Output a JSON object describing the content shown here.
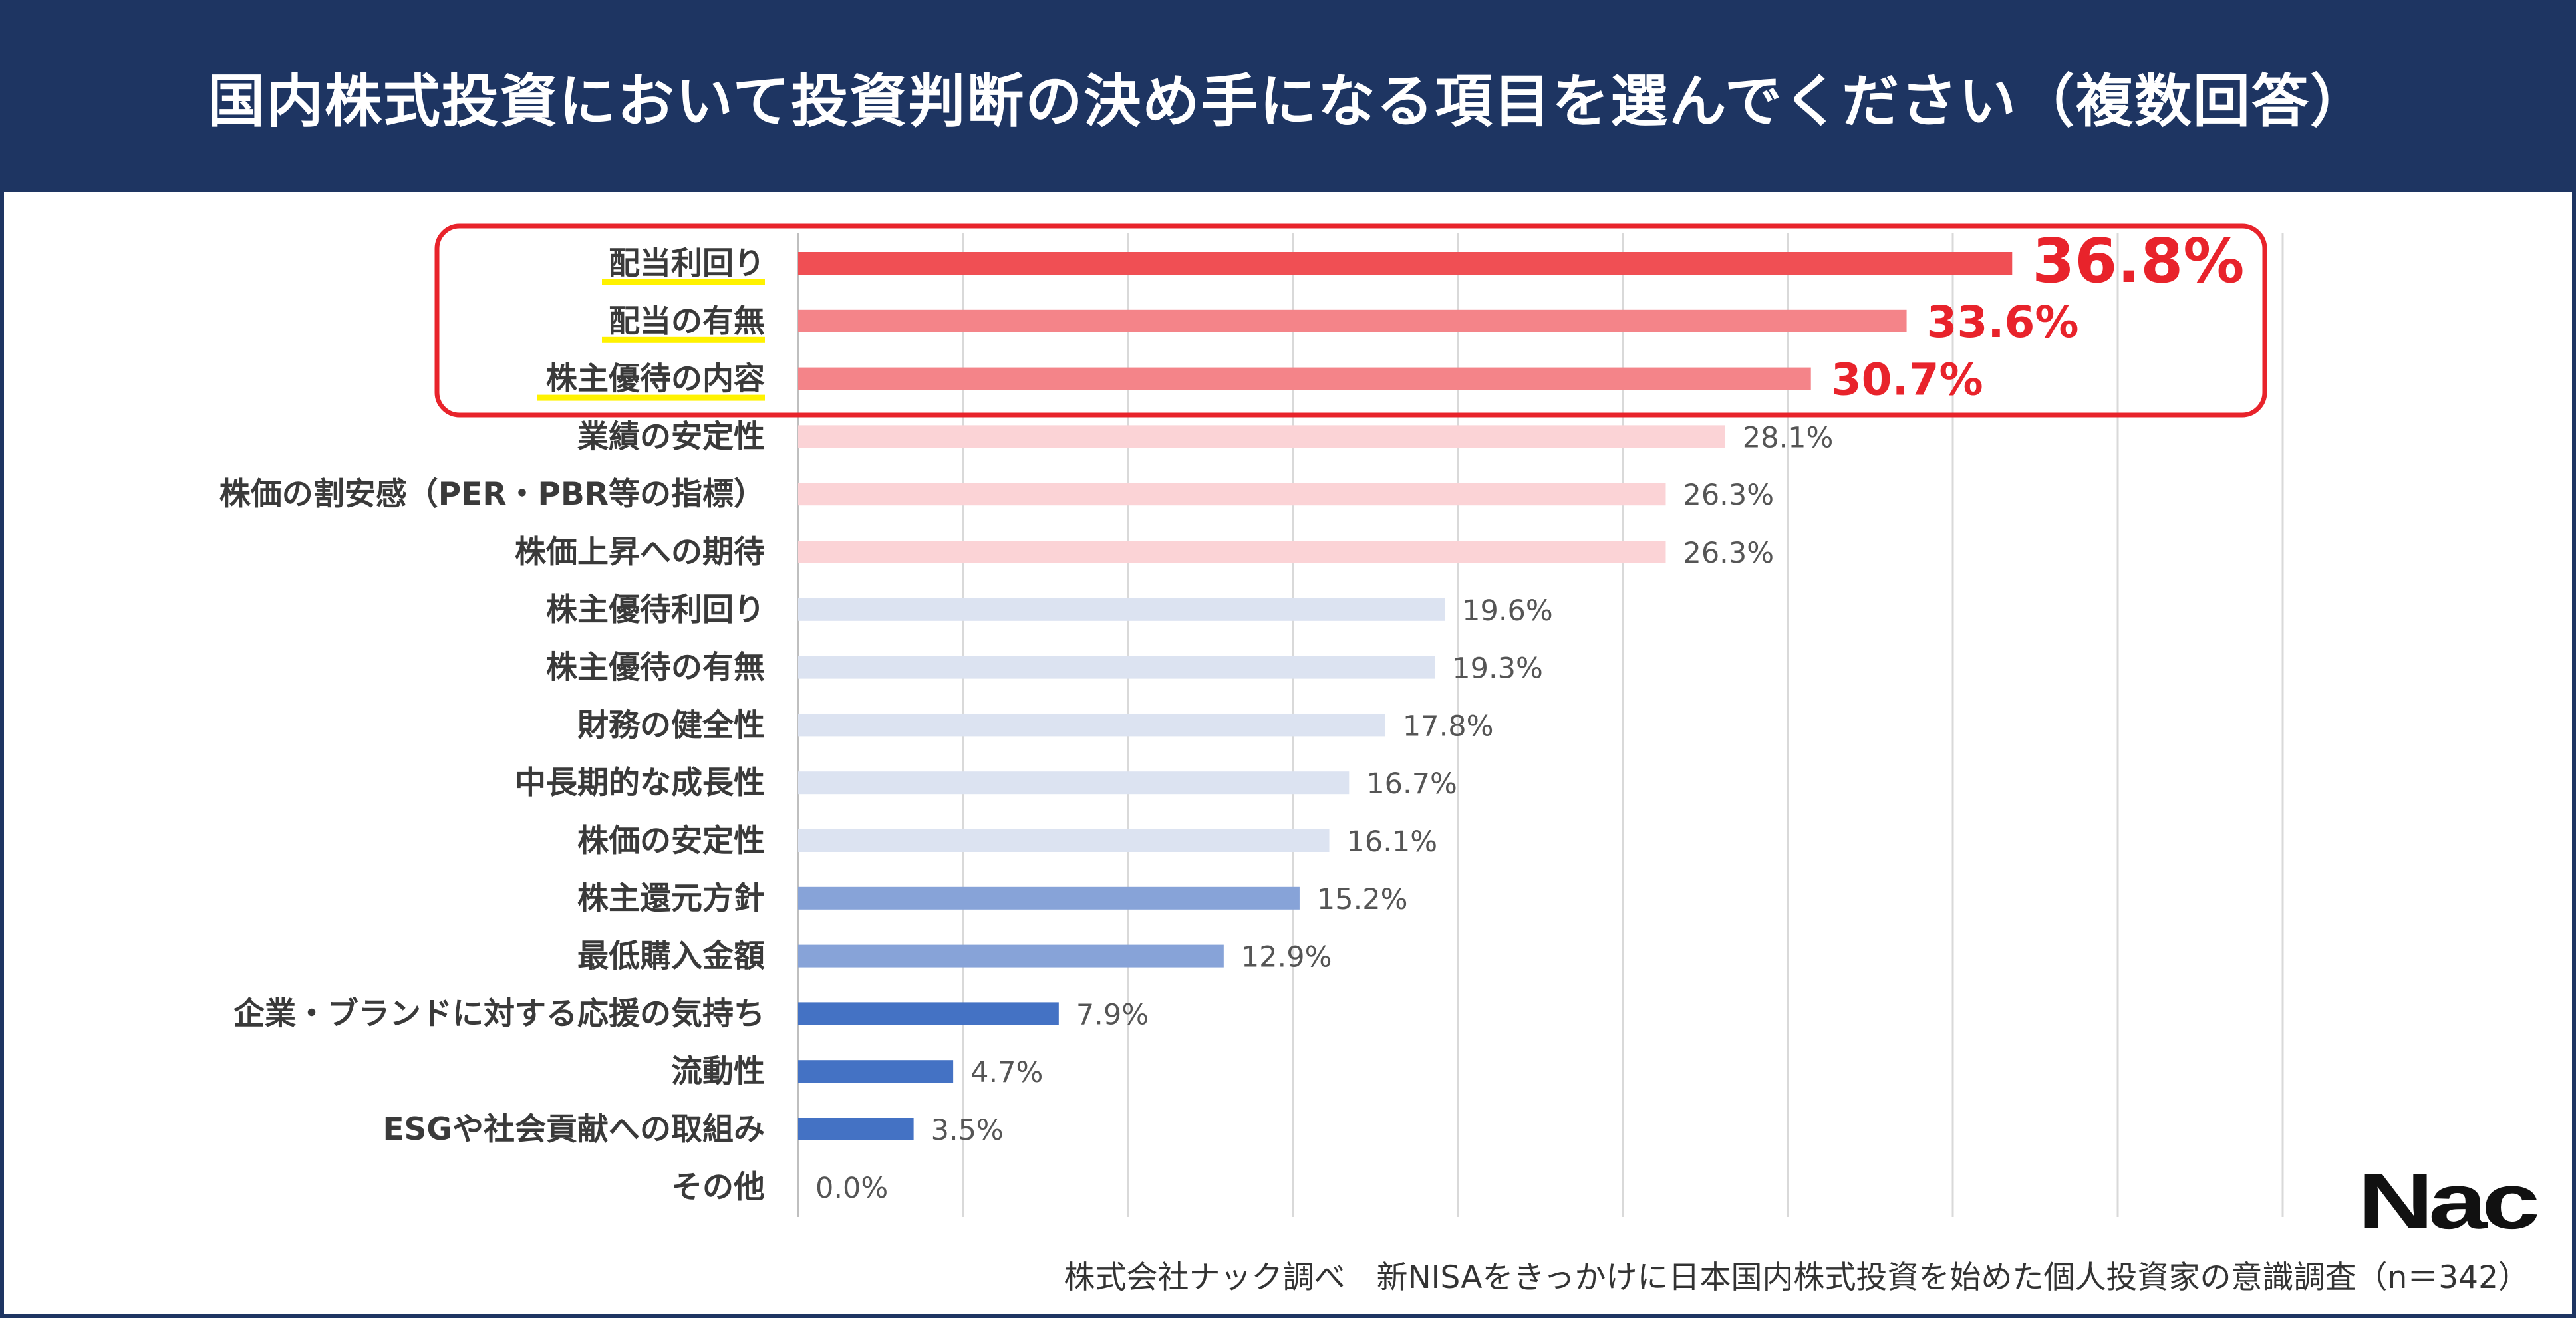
{
  "header": {
    "title": "国内株式投資において投資判断の決め手になる項目を選んでください（複数回答）"
  },
  "chart_data": {
    "type": "bar",
    "orientation": "horizontal",
    "title": "国内株式投資において投資判断の決め手になる項目を選んでください（複数回答）",
    "xlim": [
      0,
      45
    ],
    "x_tick_step": 5,
    "value_suffix": "%",
    "grid": true,
    "categories": [
      "配当利回り",
      "配当の有無",
      "株主優待の内容",
      "業績の安定性",
      "株価の割安感（PER・PBR等の指標）",
      "株価上昇への期待",
      "株主優待利回り",
      "株主優待の有無",
      "財務の健全性",
      "中長期的な成長性",
      "株価の安定性",
      "株主還元方針",
      "最低購入金額",
      "企業・ブランドに対する応援の気持ち",
      "流動性",
      "ESGや社会貢献への取組み",
      "その他"
    ],
    "values": [
      36.8,
      33.6,
      30.7,
      28.1,
      26.3,
      26.3,
      19.6,
      19.3,
      17.8,
      16.7,
      16.1,
      15.2,
      12.9,
      7.9,
      4.7,
      3.5,
      0.0
    ],
    "value_labels": [
      "36.8%",
      "33.6%",
      "30.7%",
      "28.1%",
      "26.3%",
      "26.3%",
      "19.6%",
      "19.3%",
      "17.8%",
      "16.7%",
      "16.1%",
      "15.2%",
      "12.9%",
      "7.9%",
      "4.7%",
      "3.5%",
      "0.0%"
    ],
    "bar_colors": [
      "#f04f54",
      "#f48489",
      "#f48489",
      "#fbd3d6",
      "#fbd3d6",
      "#fbd3d6",
      "#dce3f1",
      "#dce3f1",
      "#dce3f1",
      "#dce3f1",
      "#dce3f1",
      "#87a3d8",
      "#87a3d8",
      "#4472c4",
      "#4472c4",
      "#4472c4",
      "#4472c4"
    ],
    "highlight_count": 3,
    "highlight_color": "#e8232b",
    "underline_color": "#fff200",
    "grid_color": "#d9d9d9"
  },
  "footer": {
    "source": "株式会社ナック調べ　新NISAをきっかけに日本国内株式投資を始めた個人投資家の意識調査（n＝342）"
  },
  "logo": {
    "text": "Nac"
  }
}
